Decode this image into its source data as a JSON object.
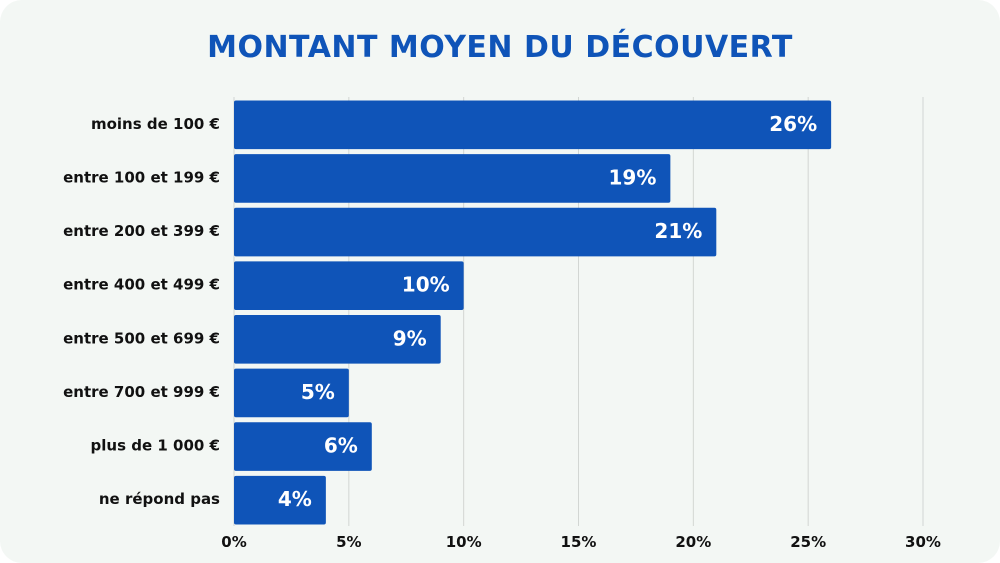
{
  "chart_data": {
    "type": "bar",
    "orientation": "horizontal",
    "title": "MONTANT MOYEN DU DÉCOUVERT",
    "categories": [
      "moins de 100 €",
      "entre 100 et 199 €",
      "entre 200 et 399 €",
      "entre 400 et 499 €",
      "entre 500 et 699 €",
      "entre 700 et 999 €",
      "plus de 1 000 €",
      "ne répond pas"
    ],
    "values": [
      26,
      19,
      21,
      10,
      9,
      5,
      6,
      4
    ],
    "value_labels": [
      "26%",
      "19%",
      "21%",
      "10%",
      "9%",
      "5%",
      "6%",
      "4%"
    ],
    "xlim": [
      0,
      30
    ],
    "x_ticks": [
      0,
      5,
      10,
      15,
      20,
      25,
      30
    ],
    "x_tick_labels": [
      "0%",
      "5%",
      "10%",
      "15%",
      "20%",
      "25%",
      "30%"
    ],
    "grid": "vertical",
    "colors": {
      "bar": "#0f54b8",
      "title": "#0f54b8",
      "grid": "#d2d6d3",
      "background": "#f3f7f4"
    }
  }
}
